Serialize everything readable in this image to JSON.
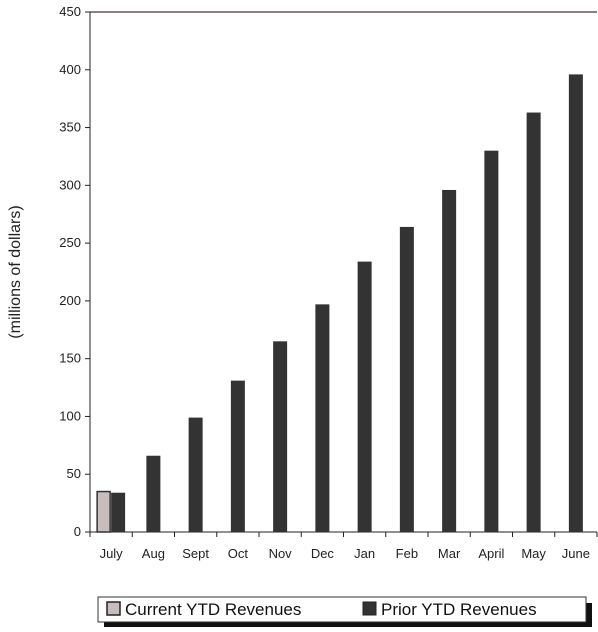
{
  "chart_data": {
    "type": "bar",
    "categories": [
      "July",
      "Aug",
      "Sept",
      "Oct",
      "Nov",
      "Dec",
      "Jan",
      "Feb",
      "Mar",
      "April",
      "May",
      "June"
    ],
    "series": [
      {
        "name": "Current YTD Revenues",
        "values": [
          35,
          null,
          null,
          null,
          null,
          null,
          null,
          null,
          null,
          null,
          null,
          null
        ]
      },
      {
        "name": "Prior YTD Revenues",
        "values": [
          34,
          66,
          99,
          131,
          165,
          197,
          234,
          264,
          296,
          330,
          363,
          396
        ]
      }
    ],
    "ylabel": "(millions of dollars)",
    "xlabel": "",
    "ylim": [
      0,
      450
    ],
    "yticks": [
      0,
      50,
      100,
      150,
      200,
      250,
      300,
      350,
      400,
      450
    ],
    "legend_position": "bottom",
    "grid": false,
    "colors": {
      "current": "#c8bcbc",
      "prior": "#333333",
      "axis": "#222222",
      "top_border": "#8a8080"
    }
  }
}
